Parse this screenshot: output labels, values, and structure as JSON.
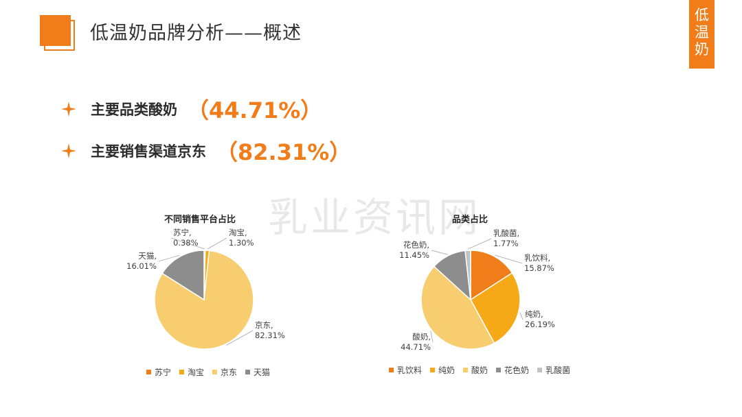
{
  "header": {
    "title": "低温奶品牌分析——概述"
  },
  "side_tab": {
    "chars": [
      "低",
      "温",
      "奶"
    ]
  },
  "bullets": [
    {
      "label": "主要品类酸奶",
      "value": "（44.71%）"
    },
    {
      "label": "主要销售渠道京东",
      "value": "（82.31%）"
    }
  ],
  "watermark": "乳业资讯网",
  "chart_data": [
    {
      "type": "pie",
      "title": "不同销售平台占比",
      "categories": [
        "苏宁",
        "淘宝",
        "京东",
        "天猫"
      ],
      "values": [
        0.38,
        1.3,
        82.31,
        16.01
      ],
      "labels": [
        "0.38%",
        "1.30%",
        "82.31%",
        "16.01%"
      ],
      "colors": [
        "#ef7d1a",
        "#f6a916",
        "#f8cd6f",
        "#8d8d8d"
      ],
      "legend": "bottom"
    },
    {
      "type": "pie",
      "title": "品类占比",
      "categories": [
        "乳饮料",
        "纯奶",
        "酸奶",
        "花色奶",
        "乳酸菌"
      ],
      "values": [
        15.87,
        26.19,
        44.71,
        11.45,
        1.77
      ],
      "labels": [
        "15.87%",
        "26.19%",
        "44.71%",
        "11.45%",
        "1.77%"
      ],
      "colors": [
        "#ef7d1a",
        "#f6a916",
        "#f8cd6f",
        "#8d8d8d",
        "#c2c2c2"
      ],
      "legend": "bottom"
    }
  ]
}
